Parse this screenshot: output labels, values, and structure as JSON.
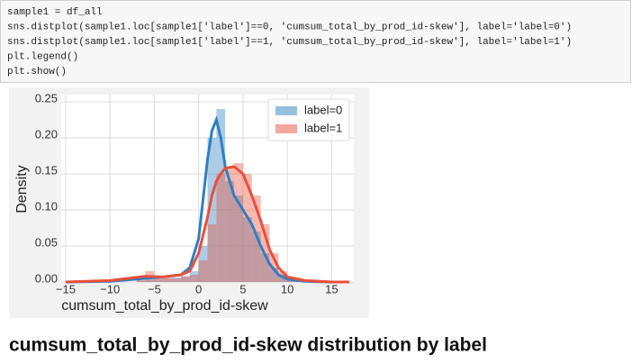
{
  "code": {
    "lines": [
      "sample1 = df_all",
      "sns.distplot(sample1.loc[sample1['label']==0, 'cumsum_total_by_prod_id-skew'], label='label=0')",
      "sns.distplot(sample1.loc[sample1['label']==1, 'cumsum_total_by_prod_id-skew'], label='label=1')",
      "plt.legend()",
      "plt.show()"
    ]
  },
  "chart_data": {
    "type": "histogram",
    "xlabel": "cumsum_total_by_prod_id-skew",
    "ylabel": "Density",
    "bins": [
      -7,
      -6,
      -5,
      -4,
      -3,
      -2,
      -1,
      0,
      1,
      2,
      3,
      4,
      5,
      6,
      7,
      8,
      9,
      10,
      11,
      12
    ],
    "kde_x": [
      -15,
      -10,
      -8,
      -6,
      -4,
      -2,
      -1,
      0,
      1,
      1.5,
      2,
      2.5,
      3,
      4,
      5,
      6,
      7,
      8,
      9,
      10,
      12,
      15,
      17
    ],
    "series": [
      {
        "name": "label=0",
        "color": "#2f7fc1",
        "values": [
          0.002,
          0.003,
          0.004,
          0.005,
          0.006,
          0.008,
          0.015,
          0.05,
          0.2,
          0.24,
          0.14,
          0.12,
          0.09,
          0.07,
          0.04,
          0.02,
          0.01,
          0.005,
          0.002
        ],
        "kde": [
          0,
          0.001,
          0.003,
          0.005,
          0.007,
          0.01,
          0.02,
          0.06,
          0.17,
          0.21,
          0.225,
          0.2,
          0.16,
          0.12,
          0.1,
          0.08,
          0.05,
          0.025,
          0.01,
          0.004,
          0.001,
          0,
          0
        ]
      },
      {
        "name": "label=1",
        "color": "#e8503c",
        "values": [
          0.003,
          0.015,
          0.005,
          0.006,
          0.005,
          0.008,
          0.01,
          0.03,
          0.08,
          0.15,
          0.16,
          0.165,
          0.15,
          0.12,
          0.08,
          0.04,
          0.015,
          0.006,
          0.003
        ],
        "kde": [
          0,
          0.002,
          0.005,
          0.008,
          0.007,
          0.01,
          0.015,
          0.04,
          0.09,
          0.12,
          0.14,
          0.15,
          0.158,
          0.16,
          0.15,
          0.12,
          0.085,
          0.045,
          0.02,
          0.007,
          0.002,
          0,
          0
        ]
      }
    ],
    "xlim": [
      -15.5,
      17.5
    ],
    "ylim": [
      0,
      0.26
    ],
    "xticks": [
      {
        "value": -15,
        "label": "−15"
      },
      {
        "value": -10,
        "label": "−10"
      },
      {
        "value": -5,
        "label": "−5"
      },
      0,
      5,
      10,
      15
    ],
    "yticks": [
      {
        "value": 0,
        "label": "0.00"
      },
      {
        "value": 0.05,
        "label": "0.05"
      },
      {
        "value": 0.1,
        "label": "0.10"
      },
      {
        "value": 0.15,
        "label": "0.15"
      },
      {
        "value": 0.2,
        "label": "0.20"
      },
      {
        "value": 0.25,
        "label": "0.25"
      }
    ],
    "grid": true,
    "legend": "upper right"
  },
  "caption": "cumsum_total_by_prod_id-skew distribution by label"
}
